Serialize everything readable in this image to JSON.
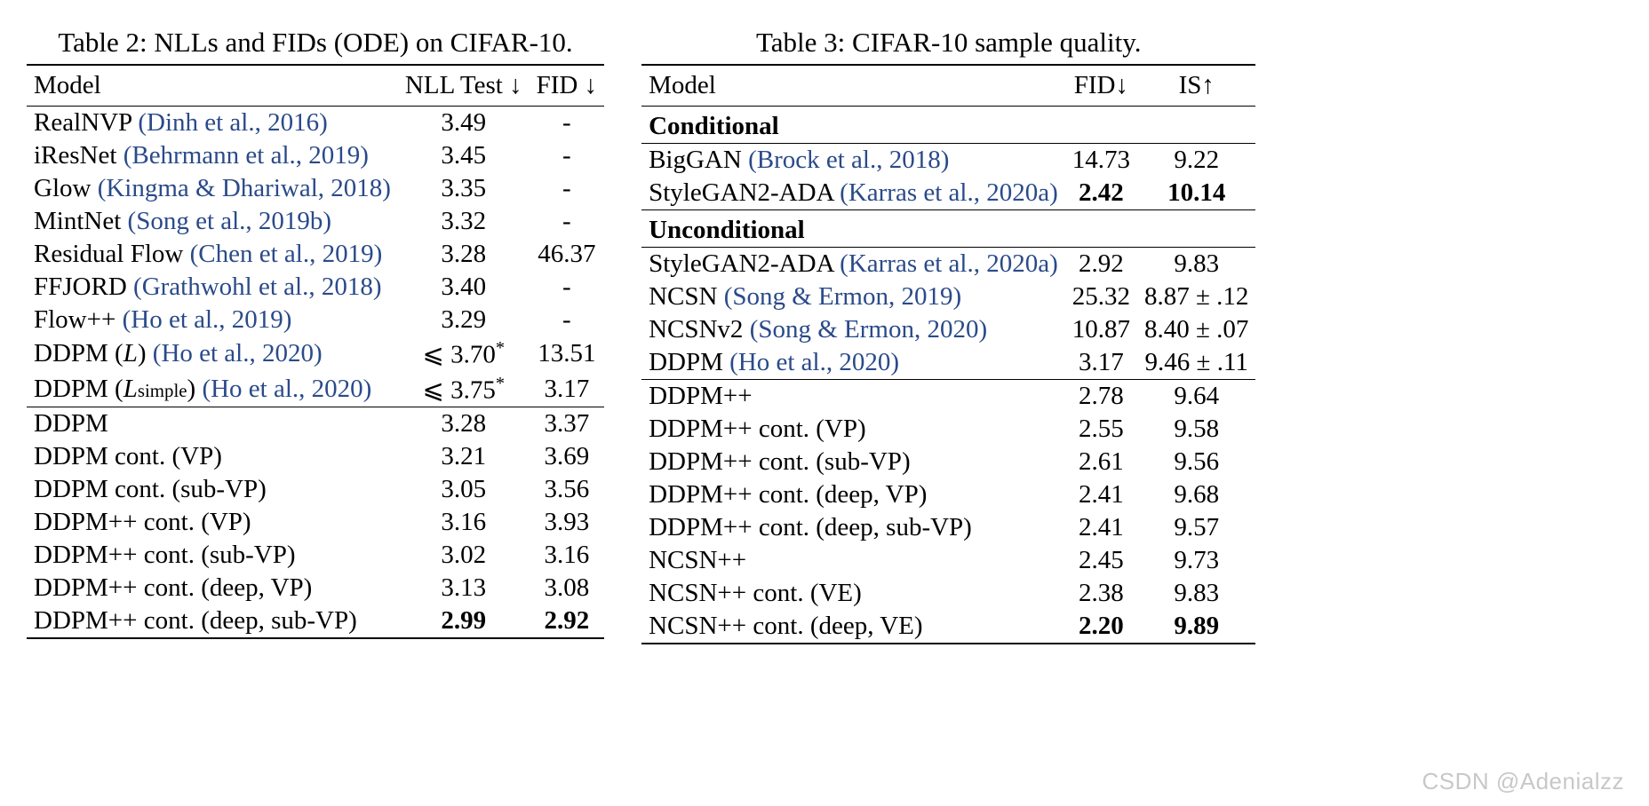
{
  "colors": {
    "citation": "#2a4a8a",
    "text": "#000000",
    "background": "#ffffff",
    "rule": "#000000",
    "watermark": "#c8c8c8"
  },
  "typography": {
    "font_family": "Times New Roman",
    "caption_fontsize_pt": 23,
    "body_fontsize_pt": 22
  },
  "watermark": "CSDN @Adenialzz",
  "table2": {
    "type": "table",
    "caption": "Table 2: NLLs and FIDs (ODE) on CIFAR-10.",
    "columns": {
      "model": "Model",
      "nll": "NLL Test ↓",
      "fid": "FID ↓"
    },
    "groups": [
      {
        "rows": [
          {
            "model": "RealNVP ",
            "cite": "(Dinh et al., 2016)",
            "nll": "3.49",
            "fid": "-"
          },
          {
            "model": "iResNet ",
            "cite": "(Behrmann et al., 2019)",
            "nll": "3.45",
            "fid": "-"
          },
          {
            "model": "Glow ",
            "cite": "(Kingma & Dhariwal, 2018)",
            "nll": "3.35",
            "fid": "-"
          },
          {
            "model": "MintNet ",
            "cite": "(Song et al., 2019b)",
            "nll": "3.32",
            "fid": "-"
          },
          {
            "model": "Residual Flow ",
            "cite": "(Chen et al., 2019)",
            "nll": "3.28",
            "fid": "46.37"
          },
          {
            "model": "FFJORD ",
            "cite": "(Grathwohl et al., 2018)",
            "nll": "3.40",
            "fid": "-"
          },
          {
            "model": "Flow++ ",
            "cite": "(Ho et al., 2019)",
            "nll": "3.29",
            "fid": "-"
          },
          {
            "model_html": "DDPM (<i>L</i>) ",
            "cite": "(Ho et al., 2020)",
            "nll_html": "⩽ 3.70<sup class='star'>*</sup>",
            "fid": "13.51"
          },
          {
            "model_html": "DDPM (<i>L</i><span class='sub'>simple</span>) ",
            "cite": "(Ho et al., 2020)",
            "nll_html": "⩽ 3.75<sup class='star'>*</sup>",
            "fid": "3.17"
          }
        ]
      },
      {
        "rows": [
          {
            "model": "DDPM",
            "nll": "3.28",
            "fid": "3.37"
          },
          {
            "model": "DDPM cont. (VP)",
            "nll": "3.21",
            "fid": "3.69"
          },
          {
            "model": "DDPM cont. (sub-VP)",
            "nll": "3.05",
            "fid": "3.56"
          },
          {
            "model": "DDPM++ cont. (VP)",
            "nll": "3.16",
            "fid": "3.93"
          },
          {
            "model": "DDPM++ cont. (sub-VP)",
            "nll": "3.02",
            "fid": "3.16"
          },
          {
            "model": "DDPM++ cont. (deep, VP)",
            "nll": "3.13",
            "fid": "3.08"
          },
          {
            "model": "DDPM++ cont. (deep, sub-VP)",
            "nll": "2.99",
            "fid": "2.92",
            "bold": true
          }
        ]
      }
    ]
  },
  "table3": {
    "type": "table",
    "caption": "Table 3: CIFAR-10 sample quality.",
    "columns": {
      "model": "Model",
      "fid": "FID↓",
      "is": "IS↑"
    },
    "sections": [
      {
        "title": "Conditional",
        "rows": [
          {
            "model": "BigGAN ",
            "cite": "(Brock et al., 2018)",
            "fid": "14.73",
            "is": "9.22"
          },
          {
            "model": "StyleGAN2-ADA ",
            "cite": "(Karras et al., 2020a)",
            "fid": "2.42",
            "is": "10.14",
            "bold": true
          }
        ]
      },
      {
        "title": "Unconditional",
        "rows": [
          {
            "model": "StyleGAN2-ADA ",
            "cite": "(Karras et al., 2020a)",
            "fid": "2.92",
            "is": "9.83"
          },
          {
            "model": "NCSN ",
            "cite": "(Song & Ermon, 2019)",
            "fid": "25.32",
            "is": "8.87 ± .12"
          },
          {
            "model": "NCSNv2 ",
            "cite": "(Song & Ermon, 2020)",
            "fid": "10.87",
            "is": "8.40 ± .07"
          },
          {
            "model": "DDPM ",
            "cite": "(Ho et al., 2020)",
            "fid": "3.17",
            "is": "9.46 ± .11"
          }
        ]
      },
      {
        "rows": [
          {
            "model": "DDPM++",
            "fid": "2.78",
            "is": "9.64"
          },
          {
            "model": "DDPM++ cont. (VP)",
            "fid": "2.55",
            "is": "9.58"
          },
          {
            "model": "DDPM++ cont. (sub-VP)",
            "fid": "2.61",
            "is": "9.56"
          },
          {
            "model": "DDPM++ cont. (deep, VP)",
            "fid": "2.41",
            "is": "9.68"
          },
          {
            "model": "DDPM++ cont. (deep, sub-VP)",
            "fid": "2.41",
            "is": "9.57"
          },
          {
            "model": "NCSN++",
            "fid": "2.45",
            "is": "9.73"
          },
          {
            "model": "NCSN++ cont. (VE)",
            "fid": "2.38",
            "is": "9.83"
          },
          {
            "model": "NCSN++ cont. (deep, VE)",
            "fid": "2.20",
            "is": "9.89",
            "bold": true
          }
        ]
      }
    ]
  }
}
